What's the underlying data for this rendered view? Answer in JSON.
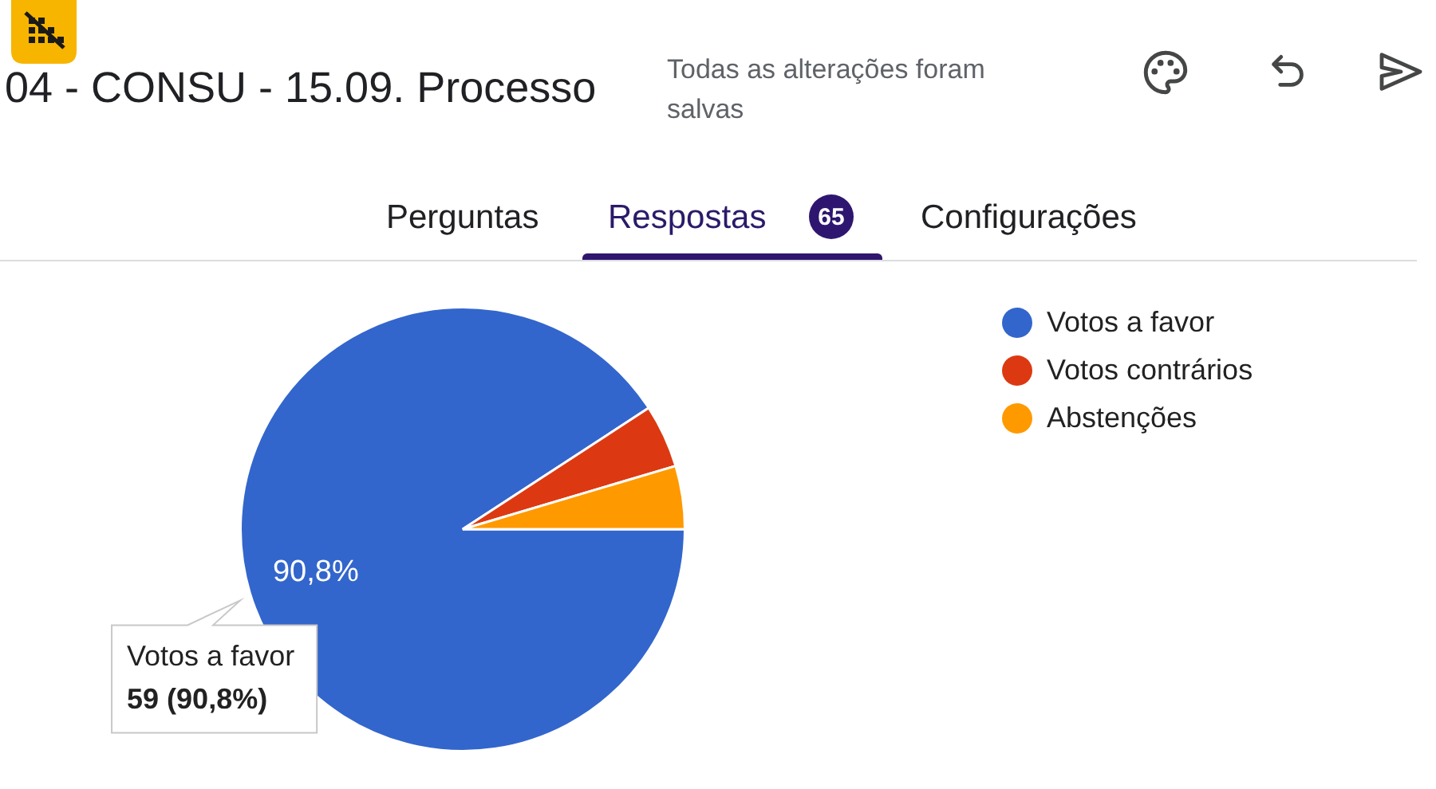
{
  "chart_data": {
    "type": "pie",
    "title": "04 - CONSU - 15.09. Processo",
    "subtitle": "Todas as alterações foram salvas",
    "categories": [
      "Votos a favor",
      "Votos contrários",
      "Abstenções"
    ],
    "values": [
      90.8,
      4.6,
      4.6
    ],
    "colors": [
      "#3366cc",
      "#dc3912",
      "#ff9900"
    ],
    "value_labels": [
      "90,8%",
      null,
      null
    ],
    "legend": "top right",
    "annotations": [
      "Perguntas",
      "Respostas",
      "65",
      "Configurações",
      "Votos a favor",
      "59 (90,8%)"
    ]
  }
}
